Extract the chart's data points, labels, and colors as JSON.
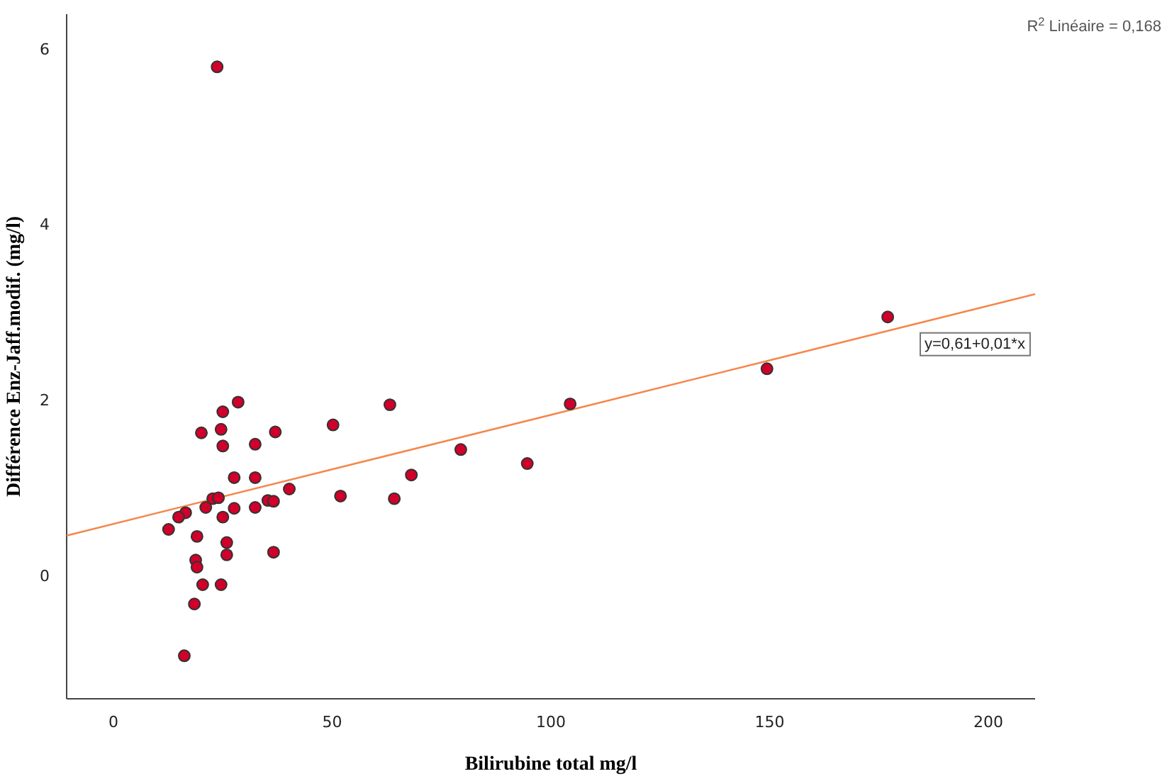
{
  "chart_data": {
    "type": "scatter",
    "xlabel": "Bilirubine total mg/l",
    "ylabel": "Différence Enz-Jaff.modif. (mg/l)",
    "xlim": [
      -10.7,
      210.7
    ],
    "ylim": [
      -1.4,
      6.4
    ],
    "xticks": [
      0,
      50,
      100,
      150,
      200
    ],
    "yticks": [
      0,
      2,
      4,
      6
    ],
    "grid": false,
    "series": [
      {
        "color": "#d0002a",
        "marker": "circle",
        "x": [
          23.7,
          28.5,
          25.0,
          20.1,
          24.6,
          25.0,
          32.4,
          37.0,
          50.2,
          63.2,
          104.4,
          149.4,
          177.0,
          27.6,
          32.4,
          79.4,
          94.6,
          68.1,
          40.2,
          51.9,
          64.2,
          22.7,
          24.0,
          21.1,
          16.5,
          14.9,
          25.0,
          27.6,
          32.4,
          35.3,
          36.6,
          12.6,
          19.1,
          25.9,
          25.9,
          36.6,
          18.8,
          19.1,
          20.4,
          24.6,
          18.5,
          16.2
        ],
        "values": [
          5.8,
          1.98,
          1.87,
          1.63,
          1.67,
          1.48,
          1.5,
          1.64,
          1.72,
          1.95,
          1.96,
          2.36,
          2.95,
          1.12,
          1.12,
          1.44,
          1.28,
          1.15,
          0.99,
          0.91,
          0.88,
          0.88,
          0.89,
          0.78,
          0.72,
          0.67,
          0.67,
          0.77,
          0.78,
          0.86,
          0.85,
          0.53,
          0.45,
          0.38,
          0.24,
          0.27,
          0.18,
          0.1,
          -0.1,
          -0.1,
          -0.32,
          -0.91
        ]
      },
      {
        "type": "line",
        "color": "#f4884e",
        "line_style": "solid",
        "x": [
          -10.7,
          210.7
        ],
        "values": [
          0.46,
          3.21
        ]
      }
    ],
    "annotations": [
      "y=0,61+0,01*x",
      "R$^{2}$ Linéaire = 0,168"
    ]
  }
}
